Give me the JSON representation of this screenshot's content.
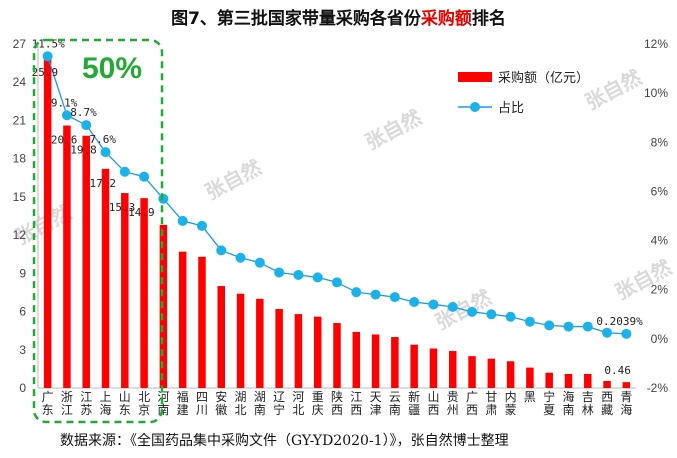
{
  "title": {
    "prefix": "图7、第三批国家带量采购各省份",
    "highlight": "采购额",
    "suffix": "排名"
  },
  "footer": {
    "source": "数据来源：《全国药品集中采购文件（GY-YD2020-1）》，张自然博士整理"
  },
  "watermark": {
    "text": "张自然"
  },
  "annotation": {
    "text": "50%"
  },
  "colors": {
    "bar": "#ff0000",
    "line": "#2196f3",
    "marker": "#1ab2e8",
    "highlight_box": "#22aa33"
  },
  "chart_data": {
    "type": "bar",
    "title": "",
    "categories": [
      "广东",
      "浙江",
      "江苏",
      "上海",
      "山东",
      "北京",
      "河南",
      "福建",
      "四川",
      "安徽",
      "湖北",
      "湖南",
      "辽宁",
      "河北",
      "重庆",
      "陕西",
      "江西",
      "天津",
      "云南",
      "新疆",
      "山西",
      "贵州",
      "广西",
      "甘肃",
      "内蒙",
      "黑龙",
      "宁夏",
      "海南",
      "吉林",
      "西藏",
      "青海"
    ],
    "x_tick_labels": [
      "广东",
      "浙江",
      "江苏",
      "上海",
      "山东",
      "北京",
      "河南",
      "福建",
      "四川",
      "安徽",
      "湖北",
      "湖南",
      "辽宁",
      "河北",
      "重庆",
      "陕西",
      "江西",
      "天津",
      "云南",
      "新疆",
      "山西",
      "贵州",
      "广西",
      "甘肃",
      "内蒙",
      "黑",
      "宁夏",
      "海南",
      "吉林",
      "西藏",
      "青海"
    ],
    "series": [
      {
        "name": "采购额（亿元）",
        "type": "bar",
        "axis": "left",
        "values": [
          25.9,
          20.6,
          19.8,
          17.2,
          15.3,
          14.9,
          12.8,
          10.7,
          10.3,
          8.0,
          7.4,
          7.0,
          6.2,
          5.8,
          5.6,
          5.1,
          4.4,
          4.2,
          4.0,
          3.4,
          3.1,
          2.9,
          2.5,
          2.3,
          2.1,
          1.6,
          1.2,
          1.1,
          1.1,
          0.55,
          0.46
        ],
        "labels": [
          "25.9",
          "20.6",
          "19.8",
          "17.2",
          "15.3",
          "14.9",
          "",
          "",
          "",
          "",
          "",
          "",
          "",
          "",
          "",
          "",
          "",
          "",
          "",
          "",
          "",
          "",
          "",
          "",
          "",
          "",
          "",
          "",
          "",
          "",
          "0.46"
        ]
      },
      {
        "name": "占比",
        "type": "line",
        "axis": "right",
        "values": [
          11.5,
          9.1,
          8.7,
          7.6,
          6.8,
          6.6,
          5.7,
          4.8,
          4.6,
          3.6,
          3.3,
          3.1,
          2.7,
          2.6,
          2.5,
          2.3,
          1.9,
          1.8,
          1.7,
          1.5,
          1.4,
          1.3,
          1.1,
          1.0,
          0.9,
          0.7,
          0.55,
          0.5,
          0.5,
          0.25,
          0.2039
        ],
        "labels": [
          "11.5%",
          "9.1%",
          "8.7%",
          "7.6%",
          "",
          "",
          "",
          "",
          "",
          "",
          "",
          "",
          "",
          "",
          "",
          "",
          "",
          "",
          "",
          "",
          "",
          "",
          "",
          "",
          "",
          "",
          "",
          "",
          "",
          "",
          "0.2039%"
        ]
      }
    ],
    "y_left": {
      "min": 0,
      "max": 27,
      "ticks": [
        "0",
        "3",
        "6",
        "9",
        "12",
        "15",
        "18",
        "21",
        "24",
        "27"
      ]
    },
    "y_right": {
      "min": -2,
      "max": 12,
      "ticks": [
        "-2%",
        "0%",
        "2%",
        "4%",
        "6%",
        "8%",
        "10%",
        "12%"
      ]
    },
    "grid": false,
    "legend_position": "top-right"
  }
}
